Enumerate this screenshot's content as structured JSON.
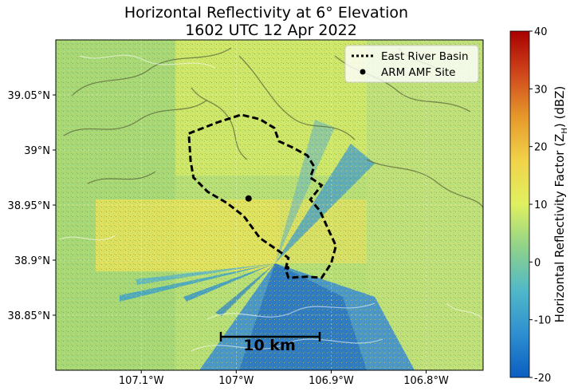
{
  "title": {
    "line1": "Horizontal Reflectivity at 6° Elevation",
    "line2": "1602 UTC 12 Apr 2022"
  },
  "map": {
    "lat_ticks": [
      {
        "value": 38.85,
        "label": "38.85°N"
      },
      {
        "value": 38.9,
        "label": "38.9°N"
      },
      {
        "value": 38.95,
        "label": "38.95°N"
      },
      {
        "value": 39.0,
        "label": "39°N"
      },
      {
        "value": 39.05,
        "label": "39.05°N"
      }
    ],
    "lon_ticks": [
      {
        "value": -107.1,
        "label": "107.1°W"
      },
      {
        "value": -107.0,
        "label": "107°W"
      },
      {
        "value": -106.9,
        "label": "106.9°W"
      },
      {
        "value": -106.8,
        "label": "106.8°W"
      }
    ],
    "lon_range": [
      -107.19,
      -106.74
    ],
    "lat_range": [
      38.8,
      39.1
    ],
    "radar": {
      "lon": -106.946,
      "lat": 38.893
    },
    "arm_site": {
      "lon": -106.987,
      "lat": 38.956
    },
    "basin_outline": [
      [
        -107.05,
        39.015
      ],
      [
        -107.02,
        39.025
      ],
      [
        -106.995,
        39.032
      ],
      [
        -106.975,
        39.028
      ],
      [
        -106.96,
        39.02
      ],
      [
        -106.955,
        39.008
      ],
      [
        -106.94,
        39.002
      ],
      [
        -106.925,
        38.995
      ],
      [
        -106.918,
        38.985
      ],
      [
        -106.922,
        38.975
      ],
      [
        -106.91,
        38.968
      ],
      [
        -106.922,
        38.955
      ],
      [
        -106.912,
        38.945
      ],
      [
        -106.903,
        38.928
      ],
      [
        -106.895,
        38.913
      ],
      [
        -106.9,
        38.897
      ],
      [
        -106.91,
        38.884
      ],
      [
        -106.925,
        38.885
      ],
      [
        -106.945,
        38.884
      ],
      [
        -106.948,
        38.892
      ],
      [
        -106.945,
        38.902
      ],
      [
        -106.958,
        38.91
      ],
      [
        -106.975,
        38.92
      ],
      [
        -106.992,
        38.94
      ],
      [
        -107.01,
        38.952
      ],
      [
        -107.03,
        38.962
      ],
      [
        -107.045,
        38.975
      ],
      [
        -107.048,
        38.99
      ],
      [
        -107.05,
        39.015
      ]
    ],
    "legend": {
      "position": "top-right",
      "items": [
        {
          "label": "East River Basin",
          "symbol": "dotted-line"
        },
        {
          "label": "ARM AMF Site",
          "symbol": "dot"
        }
      ]
    },
    "scale_bar": {
      "label": "10 km",
      "km": 10
    }
  },
  "colorbar": {
    "label": "Horizontal Reflectivity Factor (Z",
    "label_sub": "H",
    "label_end": ") (dBZ)",
    "min": -20,
    "max": 40,
    "ticks": [
      -20,
      -10,
      0,
      10,
      20,
      30,
      40
    ],
    "colors": [
      "#0a5ec0",
      "#2d8fd0",
      "#4fb8c8",
      "#8fd28a",
      "#dff060",
      "#f2d34a",
      "#e69a2b",
      "#d0481c",
      "#a80000"
    ]
  },
  "chart_data": {
    "type": "heatmap",
    "title": "Horizontal Reflectivity at 6° Elevation",
    "subtitle": "1602 UTC 12 Apr 2022",
    "colorbar_label": "Horizontal Reflectivity Factor (Z_H) (dBZ)",
    "value_range": [
      -20,
      40
    ],
    "x_range": [
      -107.19,
      -106.74
    ],
    "y_range": [
      38.8,
      39.1
    ],
    "legend": [
      "East River Basin",
      "ARM AMF Site"
    ],
    "legend_position": "top-right"
  }
}
